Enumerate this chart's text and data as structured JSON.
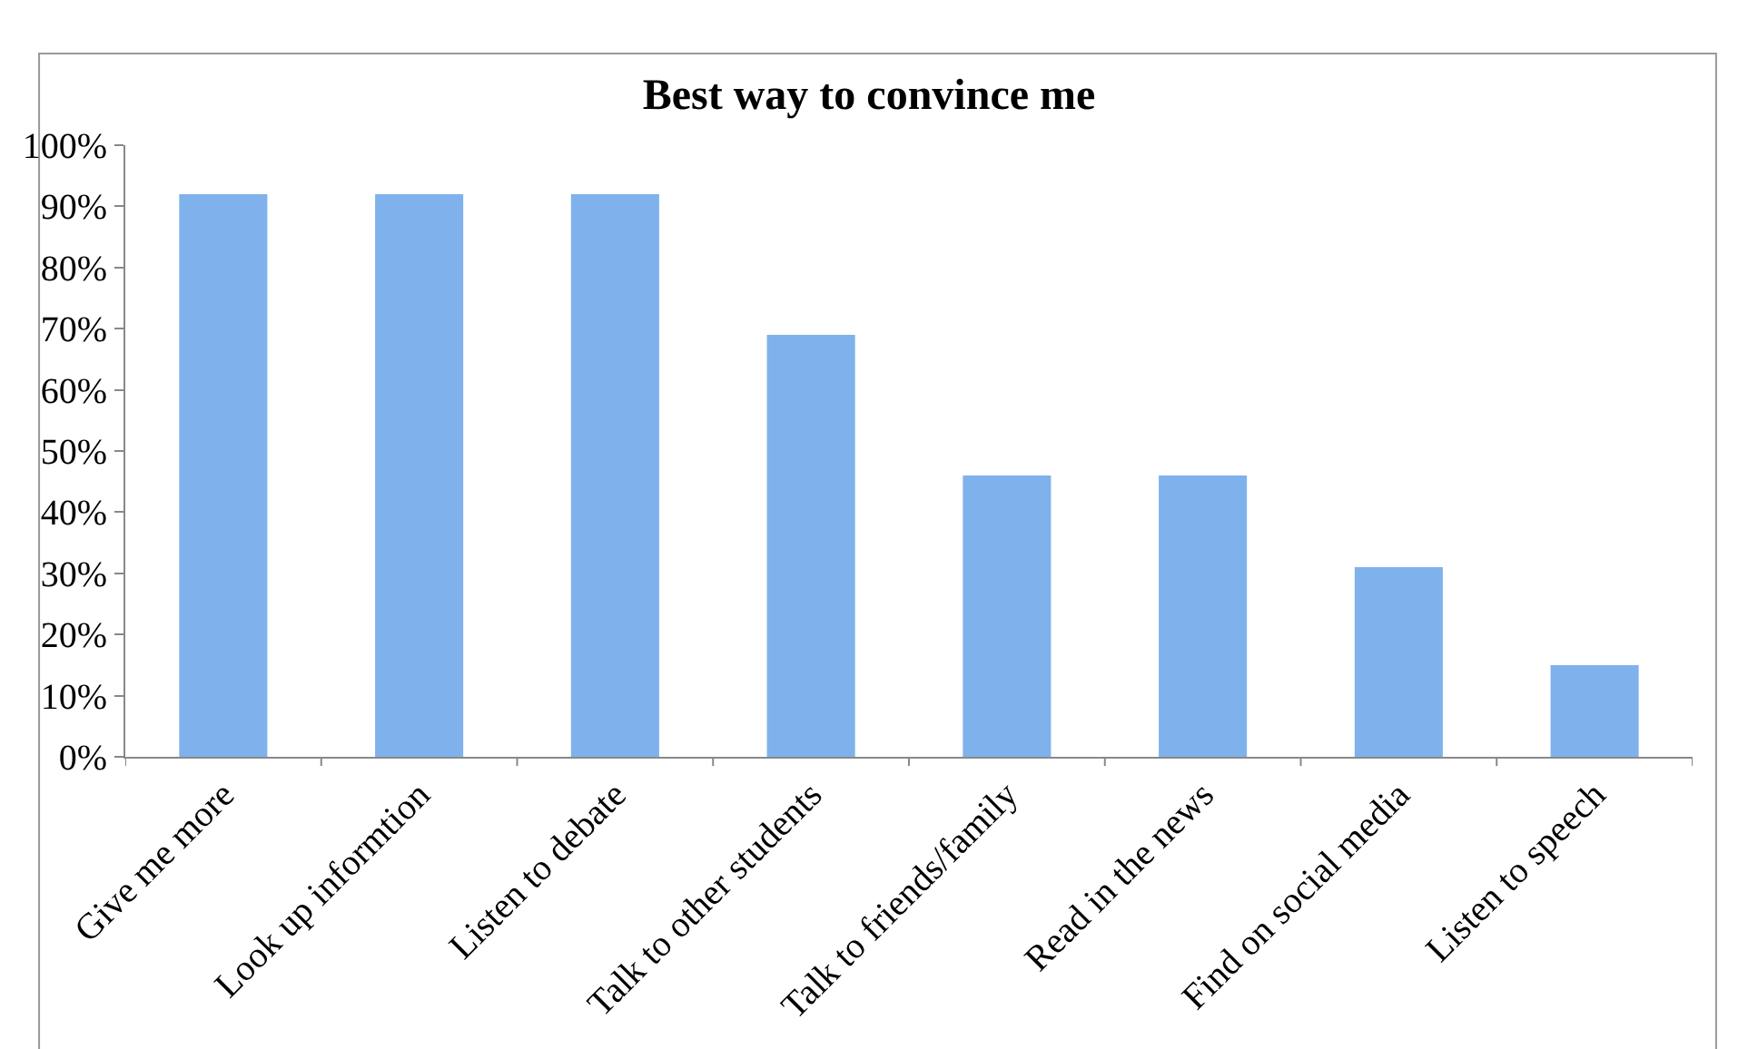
{
  "chart_data": {
    "type": "bar",
    "title": "Best way to convince me",
    "categories": [
      "Give me more",
      "Look up informtion",
      "Listen to debate",
      "Talk to other students",
      "Talk to friends/family",
      "Read in the news",
      "Find on social media",
      "Listen to speech"
    ],
    "values": [
      92,
      92,
      92,
      69,
      46,
      46,
      31,
      15
    ],
    "color": "#7fb2ec",
    "ylim": [
      0,
      100
    ],
    "yticks": [
      {
        "value": 0,
        "label": "0%"
      },
      {
        "value": 10,
        "label": "10%"
      },
      {
        "value": 20,
        "label": "20%"
      },
      {
        "value": 30,
        "label": "30%"
      },
      {
        "value": 40,
        "label": "40%"
      },
      {
        "value": 50,
        "label": "50%"
      },
      {
        "value": 60,
        "label": "60%"
      },
      {
        "value": 70,
        "label": "70%"
      },
      {
        "value": 80,
        "label": "80%"
      },
      {
        "value": 90,
        "label": "90%"
      },
      {
        "value": 100,
        "label": "100%"
      }
    ],
    "legend": false
  }
}
